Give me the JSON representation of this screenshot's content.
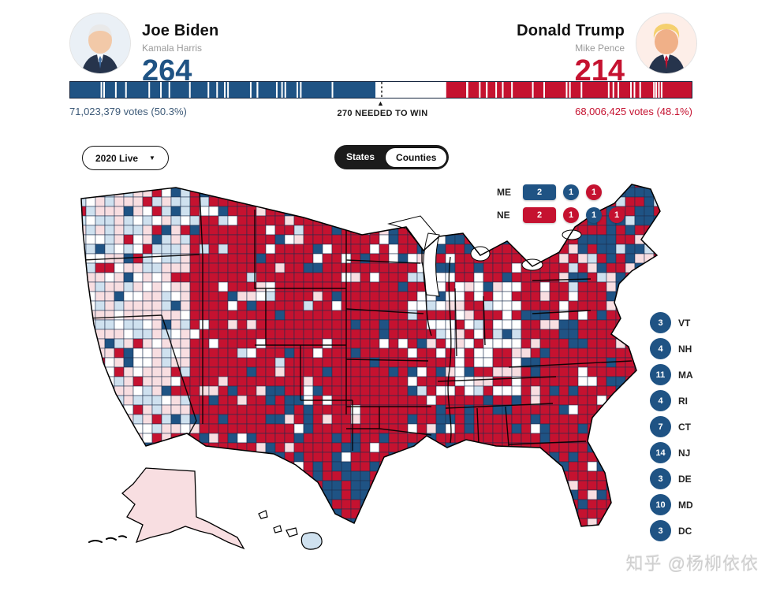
{
  "header": {
    "left": {
      "name": "Joe Biden",
      "running_mate": "Kamala Harris",
      "electoral_votes": "264"
    },
    "right": {
      "name": "Donald Trump",
      "running_mate": "Mike Pence",
      "electoral_votes": "214"
    },
    "needed_label": "270 NEEDED TO WIN",
    "marker_glyph": "▲",
    "votes_left": "71,023,379 votes (50.3%)",
    "votes_right": "68,006,425 votes (48.1%)"
  },
  "bar": {
    "dem_ev": 264,
    "gop_ev": 214,
    "total_ev": 538,
    "needed_ev": 270
  },
  "controls": {
    "dropdown_label": "2020 Live",
    "dropdown_caret": "▼",
    "toggle_states_label": "States",
    "toggle_counties_label": "Counties",
    "toggle_active": "Counties"
  },
  "split_states": [
    {
      "label": "ME",
      "items": [
        {
          "value": "2",
          "color": "dem"
        },
        {
          "value": "1",
          "color": "dem"
        },
        {
          "value": "1",
          "color": "gop"
        }
      ]
    },
    {
      "label": "NE",
      "items": [
        {
          "value": "2",
          "color": "gop"
        },
        {
          "value": "1",
          "color": "gop"
        },
        {
          "value": "1",
          "color": "dem"
        },
        {
          "value": "1",
          "color": "gop"
        }
      ]
    }
  ],
  "small_states": [
    {
      "value": "3",
      "label": "VT"
    },
    {
      "value": "4",
      "label": "NH"
    },
    {
      "value": "11",
      "label": "MA"
    },
    {
      "value": "4",
      "label": "RI"
    },
    {
      "value": "7",
      "label": "CT"
    },
    {
      "value": "14",
      "label": "NJ"
    },
    {
      "value": "3",
      "label": "DE"
    },
    {
      "value": "10",
      "label": "MD"
    },
    {
      "value": "3",
      "label": "DC"
    }
  ],
  "colors": {
    "dem": "#1f5384",
    "gop": "#c51230",
    "dem_lean": "#cfe1ef",
    "gop_lean": "#f8dee1",
    "none": "#ffffff",
    "county_border": "#1c2e4d"
  },
  "watermark": "知乎 @杨柳依依"
}
